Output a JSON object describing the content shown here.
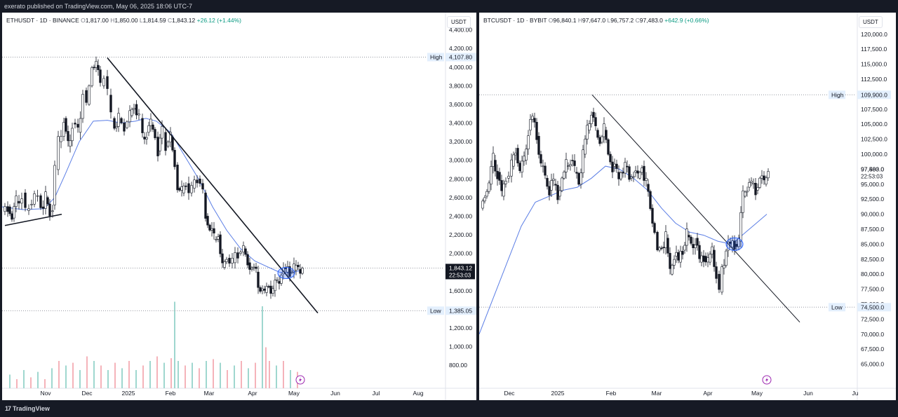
{
  "caption": "exerato published on TradingView.com, May 06, 2025 18:06 UTC-7",
  "footer": {
    "brand_mark": "17",
    "brand": "TradingView"
  },
  "accent_colors": {
    "up": "#089981",
    "down": "#131722",
    "ma": "#5b7ee5",
    "volume_up": "#9fd7cf",
    "volume_down": "#f5b3ba",
    "highlight": "#2962ff"
  },
  "icons": [
    "lightning-icon"
  ],
  "chart_data": [
    {
      "type": "candlestick",
      "panel": "left",
      "legend": {
        "symbol": "ETHUSDT · 1D · BINANCE",
        "o_label": "O",
        "open": "1,817.00",
        "h_label": "H",
        "high": "1,850.00",
        "l_label": "L",
        "low": "1,814.59",
        "c_label": "C",
        "close": "1,843.12",
        "change": "+26.12 (+1.44%)"
      },
      "currency": "USDT",
      "y_ticks": [
        "4,400.00",
        "4,200.00",
        "4,000.00",
        "3,800.00",
        "3,600.00",
        "3,400.00",
        "3,200.00",
        "3,000.00",
        "2,800.00",
        "2,600.00",
        "2,400.00",
        "2,200.00",
        "2,000.00",
        "1,800.00",
        "1,600.00",
        "1,400.00",
        "1,200.00",
        "1,000.00",
        "800.00"
      ],
      "x_ticks": [
        "Nov",
        "Dec",
        "2025",
        "Feb",
        "Mar",
        "Apr",
        "May",
        "Jun",
        "Jul",
        "Aug"
      ],
      "high_label": "High",
      "high_value": "4,107.80",
      "low_label": "Low",
      "low_value": "1,385.05",
      "last_price": "1,843.12",
      "countdown": "22:53:03",
      "ylim": [
        650,
        4450
      ],
      "series_path": [
        [
          0,
          2450
        ],
        [
          8,
          2500
        ],
        [
          14,
          2380
        ],
        [
          20,
          2560
        ],
        [
          28,
          2650
        ],
        [
          33,
          2460
        ],
        [
          38,
          2520
        ],
        [
          46,
          2620
        ],
        [
          55,
          2500
        ],
        [
          62,
          2600
        ],
        [
          68,
          2450
        ],
        [
          72,
          2520
        ],
        [
          75,
          2900
        ],
        [
          80,
          3200
        ],
        [
          88,
          3450
        ],
        [
          94,
          3150
        ],
        [
          100,
          3400
        ],
        [
          108,
          3300
        ],
        [
          115,
          3750
        ],
        [
          120,
          3600
        ],
        [
          128,
          4000
        ],
        [
          134,
          4020
        ],
        [
          140,
          3800
        ],
        [
          145,
          3900
        ],
        [
          150,
          3700
        ],
        [
          155,
          3450
        ],
        [
          160,
          3350
        ],
        [
          166,
          3450
        ],
        [
          174,
          3350
        ],
        [
          182,
          3480
        ],
        [
          188,
          3600
        ],
        [
          195,
          3450
        ],
        [
          200,
          3250
        ],
        [
          206,
          3300
        ],
        [
          212,
          3380
        ],
        [
          218,
          3250
        ],
        [
          222,
          3100
        ],
        [
          228,
          3300
        ],
        [
          233,
          3150
        ],
        [
          240,
          3250
        ],
        [
          246,
          2950
        ],
        [
          250,
          2700
        ],
        [
          256,
          2650
        ],
        [
          262,
          2750
        ],
        [
          270,
          2700
        ],
        [
          278,
          2800
        ],
        [
          286,
          2650
        ],
        [
          290,
          2400
        ],
        [
          296,
          2250
        ],
        [
          302,
          2150
        ],
        [
          308,
          2200
        ],
        [
          314,
          1850
        ],
        [
          320,
          1950
        ],
        [
          328,
          1900
        ],
        [
          336,
          2000
        ],
        [
          344,
          2050
        ],
        [
          350,
          1900
        ],
        [
          356,
          1850
        ],
        [
          362,
          1800
        ],
        [
          368,
          1600
        ],
        [
          374,
          1580
        ],
        [
          380,
          1650
        ],
        [
          386,
          1600
        ],
        [
          392,
          1700
        ],
        [
          398,
          1780
        ],
        [
          404,
          1800
        ],
        [
          410,
          1800
        ],
        [
          416,
          1820
        ],
        [
          422,
          1830
        ],
        [
          428,
          1843
        ]
      ],
      "moving_average": [
        [
          0,
          2500
        ],
        [
          30,
          2470
        ],
        [
          60,
          2480
        ],
        [
          75,
          2600
        ],
        [
          90,
          2850
        ],
        [
          110,
          3200
        ],
        [
          130,
          3420
        ],
        [
          150,
          3430
        ],
        [
          170,
          3400
        ],
        [
          190,
          3420
        ],
        [
          205,
          3450
        ],
        [
          220,
          3420
        ],
        [
          240,
          3300
        ],
        [
          260,
          3050
        ],
        [
          280,
          2800
        ],
        [
          300,
          2500
        ],
        [
          320,
          2250
        ],
        [
          340,
          2050
        ],
        [
          360,
          1920
        ],
        [
          380,
          1850
        ],
        [
          395,
          1800
        ],
        [
          410,
          1790
        ],
        [
          428,
          1820
        ]
      ],
      "trendlines": [
        {
          "from": [
            150,
            4100
          ],
          "to": [
            450,
            1360
          ]
        },
        {
          "from": [
            4,
            2300
          ],
          "to": [
            85,
            2420
          ]
        }
      ],
      "highlight_ellipse": {
        "center": [
          405,
          1790
        ]
      },
      "volume": [
        [
          10,
          0.15
        ],
        [
          20,
          0.1
        ],
        [
          30,
          0.2
        ],
        [
          40,
          0.12
        ],
        [
          50,
          0.18
        ],
        [
          60,
          0.1
        ],
        [
          70,
          0.22
        ],
        [
          80,
          0.3
        ],
        [
          90,
          0.25
        ],
        [
          100,
          0.28
        ],
        [
          110,
          0.2
        ],
        [
          120,
          0.35
        ],
        [
          130,
          0.3
        ],
        [
          140,
          0.25
        ],
        [
          150,
          0.2
        ],
        [
          160,
          0.28
        ],
        [
          170,
          0.22
        ],
        [
          180,
          0.3
        ],
        [
          190,
          0.2
        ],
        [
          200,
          0.25
        ],
        [
          210,
          0.3
        ],
        [
          220,
          0.35
        ],
        [
          230,
          0.28
        ],
        [
          240,
          0.33
        ],
        [
          245,
          0.95
        ],
        [
          250,
          0.3
        ],
        [
          260,
          0.25
        ],
        [
          270,
          0.28
        ],
        [
          280,
          0.22
        ],
        [
          290,
          0.3
        ],
        [
          300,
          0.32
        ],
        [
          310,
          0.28
        ],
        [
          320,
          0.2
        ],
        [
          330,
          0.25
        ],
        [
          340,
          0.3
        ],
        [
          350,
          0.22
        ],
        [
          360,
          0.28
        ],
        [
          370,
          0.9
        ],
        [
          375,
          0.45
        ],
        [
          380,
          0.3
        ],
        [
          390,
          0.25
        ],
        [
          400,
          0.3
        ],
        [
          410,
          0.2
        ],
        [
          420,
          0.18
        ]
      ]
    },
    {
      "type": "candlestick",
      "panel": "right",
      "legend": {
        "symbol": "BTCUSDT · 1D · BYBIT",
        "o_label": "O",
        "open": "96,840.1",
        "h_label": "H",
        "high": "97,647.0",
        "l_label": "L",
        "low": "96,757.2",
        "c_label": "C",
        "close": "97,483.0",
        "change": "+642.9 (+0.66%)"
      },
      "currency": "USDT",
      "y_ticks": [
        "120,000.0",
        "117,500.0",
        "115,000.0",
        "112,500.0",
        "110,000.0",
        "107,500.0",
        "105,000.0",
        "102,500.0",
        "100,000.0",
        "97,500.0",
        "95,000.0",
        "92,500.0",
        "90,000.0",
        "87,500.0",
        "85,000.0",
        "82,500.0",
        "80,000.0",
        "77,500.0",
        "75,000.0",
        "72,500.0",
        "70,000.0",
        "67,500.0",
        "65,000.0"
      ],
      "x_ticks": [
        "Dec",
        "2025",
        "Feb",
        "Mar",
        "Apr",
        "May",
        "Jun",
        "Ju"
      ],
      "high_label": "High",
      "high_value": "109,900.0",
      "low_label": "Low",
      "low_value": "74,500.0",
      "last_price": "97,483.0",
      "countdown": "22:53:03",
      "ylim": [
        62500,
        121500
      ],
      "series_path": [
        [
          2,
          91000
        ],
        [
          8,
          93000
        ],
        [
          14,
          95000
        ],
        [
          20,
          99000
        ],
        [
          26,
          97000
        ],
        [
          32,
          93000
        ],
        [
          38,
          96000
        ],
        [
          46,
          98000
        ],
        [
          52,
          101000
        ],
        [
          58,
          97000
        ],
        [
          64,
          99000
        ],
        [
          70,
          104000
        ],
        [
          76,
          106000
        ],
        [
          82,
          103000
        ],
        [
          88,
          98000
        ],
        [
          94,
          96000
        ],
        [
          100,
          94000
        ],
        [
          106,
          95000
        ],
        [
          112,
          93000
        ],
        [
          118,
          96000
        ],
        [
          124,
          98000
        ],
        [
          130,
          99000
        ],
        [
          136,
          97000
        ],
        [
          142,
          95000
        ],
        [
          148,
          100000
        ],
        [
          154,
          104000
        ],
        [
          160,
          107000
        ],
        [
          166,
          104000
        ],
        [
          172,
          102000
        ],
        [
          178,
          104000
        ],
        [
          184,
          100000
        ],
        [
          190,
          98000
        ],
        [
          196,
          97000
        ],
        [
          202,
          97000
        ],
        [
          208,
          98000
        ],
        [
          214,
          96000
        ],
        [
          220,
          97000
        ],
        [
          226,
          96000
        ],
        [
          232,
          98000
        ],
        [
          238,
          95000
        ],
        [
          244,
          91000
        ],
        [
          250,
          87000
        ],
        [
          254,
          84000
        ],
        [
          260,
          84500
        ],
        [
          266,
          86000
        ],
        [
          272,
          80000
        ],
        [
          278,
          83000
        ],
        [
          284,
          82000
        ],
        [
          290,
          84000
        ],
        [
          296,
          86500
        ],
        [
          302,
          85000
        ],
        [
          308,
          86000
        ],
        [
          314,
          82000
        ],
        [
          320,
          83000
        ],
        [
          326,
          82000
        ],
        [
          332,
          84000
        ],
        [
          338,
          80000
        ],
        [
          342,
          77000
        ],
        [
          346,
          81000
        ],
        [
          352,
          84000
        ],
        [
          358,
          84500
        ],
        [
          364,
          85000
        ],
        [
          370,
          85500
        ],
        [
          376,
          93000
        ],
        [
          382,
          94500
        ],
        [
          388,
          95000
        ],
        [
          394,
          94000
        ],
        [
          400,
          96000
        ],
        [
          406,
          95000
        ],
        [
          412,
          97483
        ]
      ],
      "moving_average": [
        [
          0,
          70000
        ],
        [
          20,
          76000
        ],
        [
          40,
          82000
        ],
        [
          60,
          88000
        ],
        [
          80,
          92000
        ],
        [
          100,
          93000
        ],
        [
          120,
          94000
        ],
        [
          140,
          94500
        ],
        [
          160,
          96000
        ],
        [
          180,
          98000
        ],
        [
          200,
          97500
        ],
        [
          220,
          96000
        ],
        [
          240,
          94000
        ],
        [
          260,
          91000
        ],
        [
          280,
          88500
        ],
        [
          300,
          87000
        ],
        [
          320,
          86500
        ],
        [
          340,
          85500
        ],
        [
          360,
          85000
        ],
        [
          380,
          87000
        ],
        [
          395,
          88500
        ],
        [
          410,
          90000
        ]
      ],
      "trendlines": [
        {
          "from": [
            161,
            109900
          ],
          "to": [
            457,
            72000
          ]
        }
      ],
      "highlight_ellipse": {
        "center": [
          364,
          85000
        ]
      },
      "volume": []
    }
  ]
}
